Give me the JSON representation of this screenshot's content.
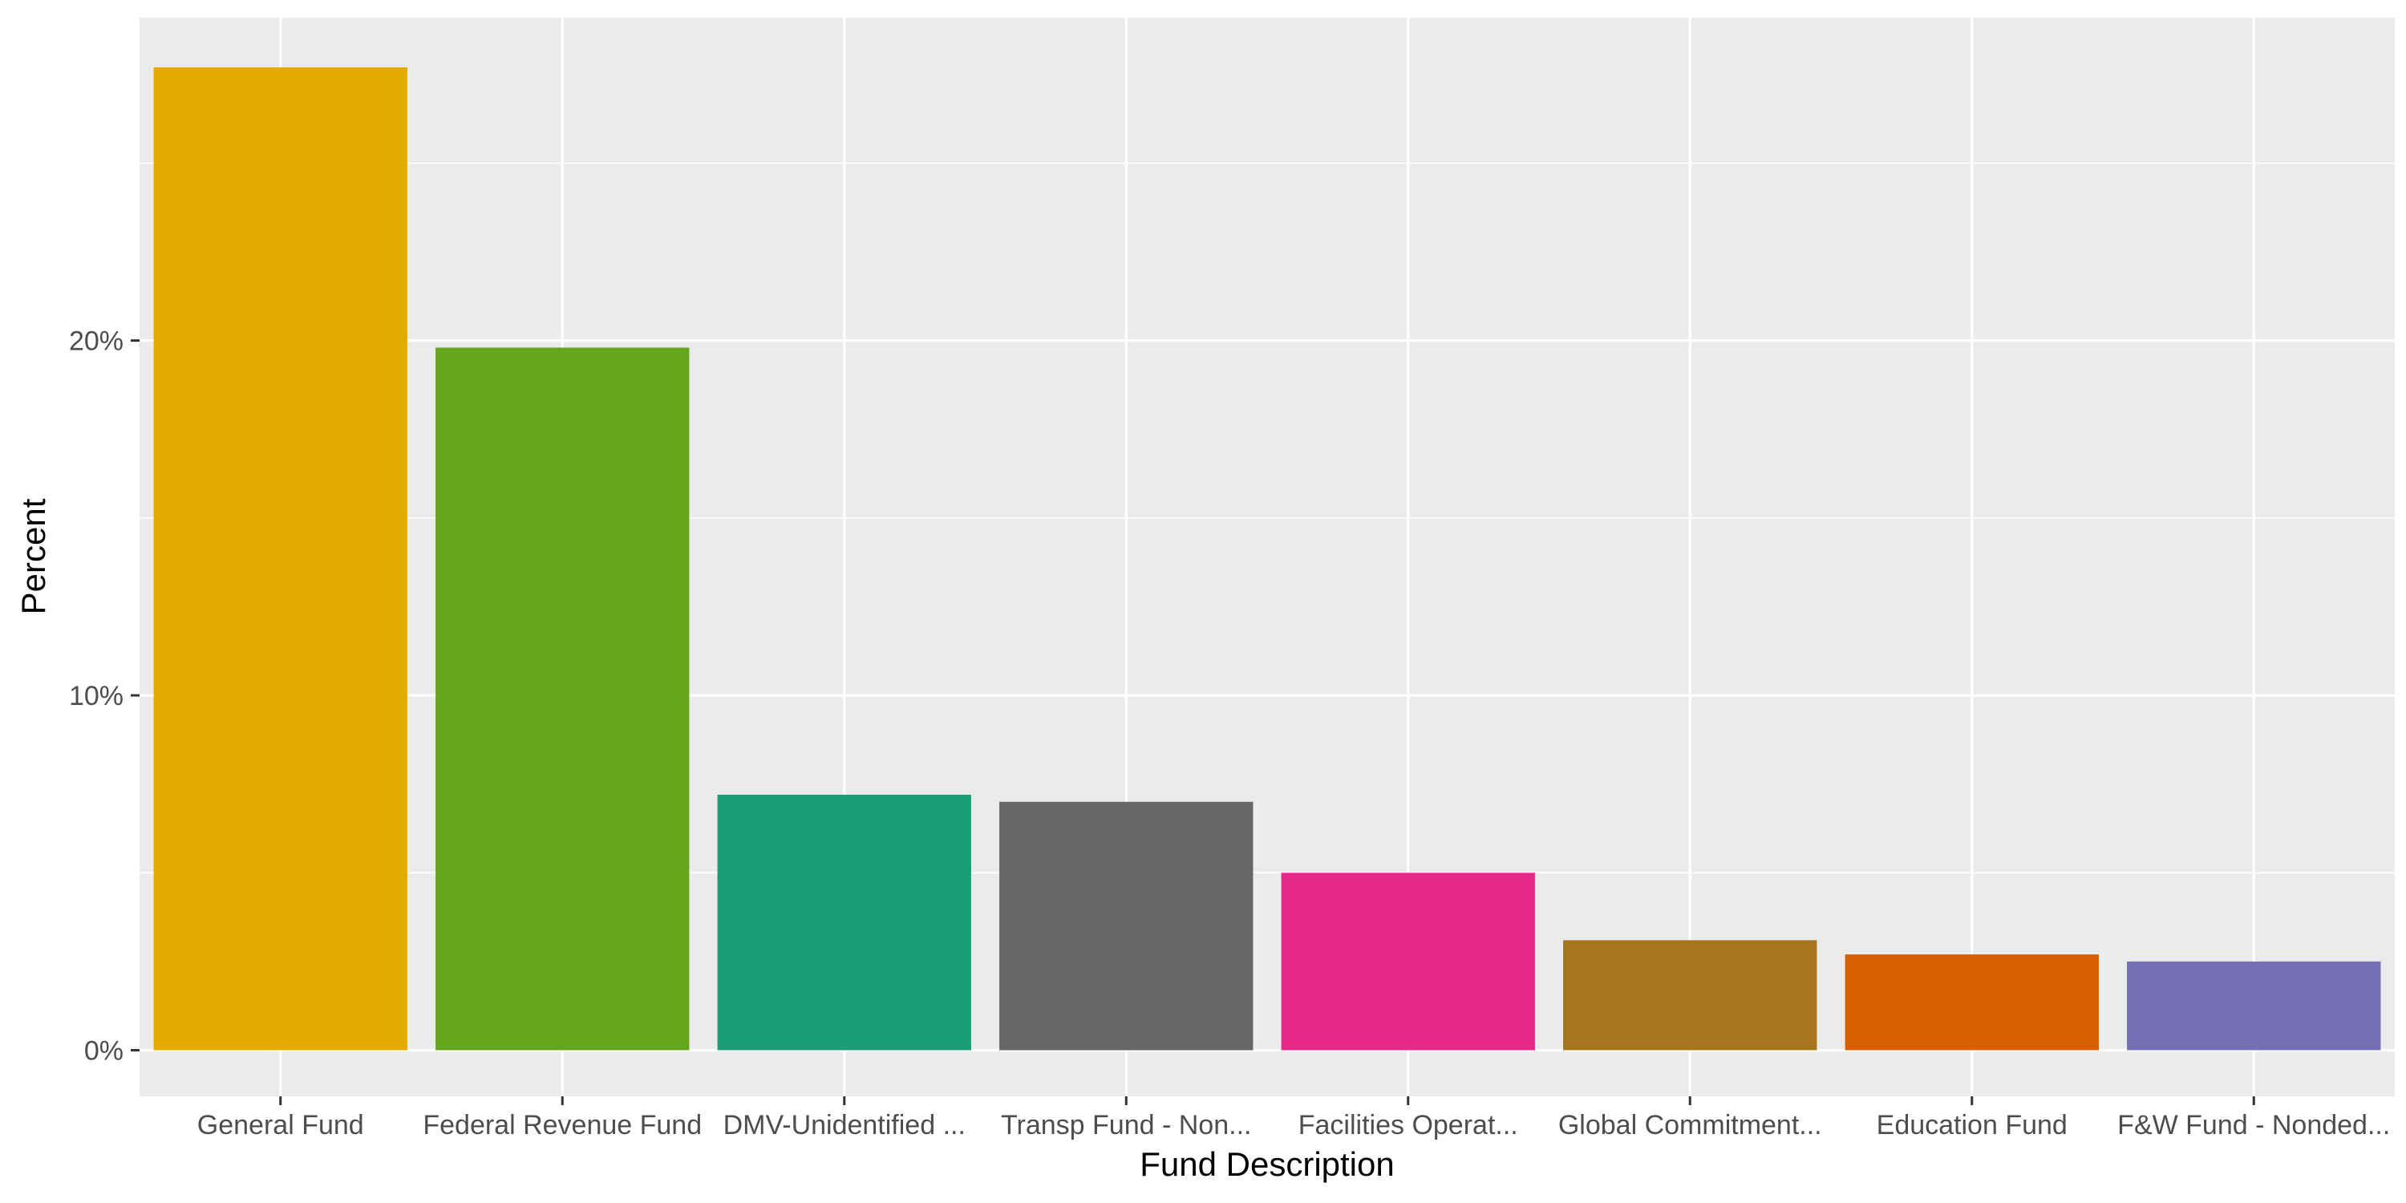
{
  "chart_data": {
    "type": "bar",
    "title": "",
    "xlabel": "Fund Description",
    "ylabel": "Percent",
    "categories": [
      "General Fund",
      "Federal Revenue Fund",
      "DMV-Unidentified ...",
      "Transp Fund - Non...",
      "Facilities Operat...",
      "Global Commitment...",
      "Education Fund",
      "F&W Fund - Nonded..."
    ],
    "values": [
      27.7,
      19.8,
      7.2,
      7.0,
      5.0,
      3.1,
      2.7,
      2.5
    ],
    "colors": [
      "#E6AB02",
      "#66A61E",
      "#1B9E77",
      "#666666",
      "#E7298A",
      "#A6761D",
      "#D95F02",
      "#7570B3"
    ],
    "ylim": [
      -1.3,
      29.1
    ],
    "yticks": [
      0,
      10,
      20
    ],
    "ytick_labels": [
      "0%",
      "10%",
      "20%"
    ],
    "panel_background": "#EBEBEB",
    "grid": true,
    "legend": "none"
  }
}
